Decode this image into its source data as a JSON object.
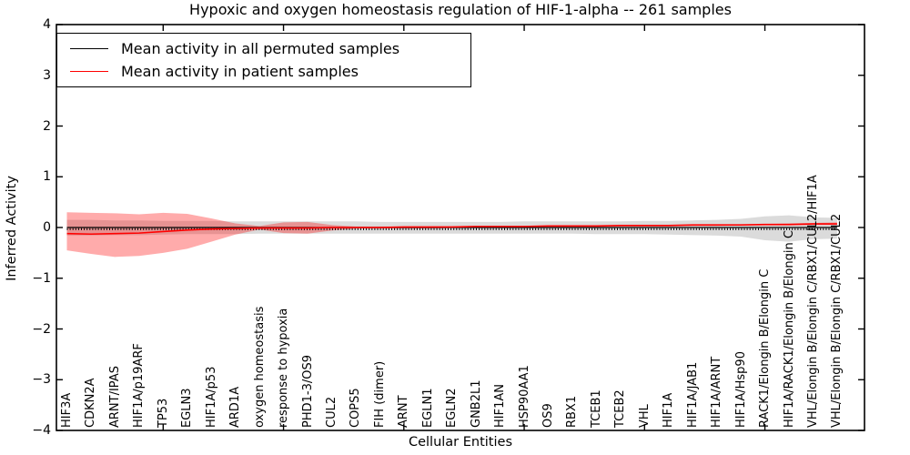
{
  "title": "Hypoxic and oxygen homeostasis regulation of HIF-1-alpha -- 261 samples",
  "axes": {
    "x_label": "Cellular Entities",
    "y_label": "Inferred Activity",
    "y_ticks": [
      "4",
      "3",
      "2",
      "1",
      "0",
      "−1",
      "−2",
      "−3",
      "−4"
    ]
  },
  "legend": {
    "items": [
      {
        "label": "Mean activity in all permuted samples",
        "color": "#000000"
      },
      {
        "label": "Mean activity in patient samples",
        "color": "#ff0000"
      }
    ],
    "position": "upper left"
  },
  "colors": {
    "patient_line": "#ff0000",
    "permuted_line": "#000000",
    "patient_band": "rgba(255,0,0,0.33)",
    "permuted_band": "rgba(0,0,0,0.14)",
    "axis": "#000000"
  },
  "chart_data": {
    "type": "line",
    "title": "Hypoxic and oxygen homeostasis regulation of HIF-1-alpha -- 261 samples",
    "xlabel": "Cellular Entities",
    "ylabel": "Inferred Activity",
    "ylim": [
      -4,
      4
    ],
    "grid": false,
    "legend_position": "upper left",
    "categories": [
      "HIF3A",
      "CDKN2A",
      "ARNT/IPAS",
      "HIF1A/p19ARF",
      "TP53",
      "EGLN3",
      "HIF1A/p53",
      "ARD1A",
      "oxygen homeostasis",
      "response to hypoxia",
      "PHD1-3/OS9",
      "CUL2",
      "COPS5",
      "FIH (dimer)",
      "ARNT",
      "EGLN1",
      "EGLN2",
      "GNB2L1",
      "HIF1AN",
      "HSP90AA1",
      "OS9",
      "RBX1",
      "TCEB1",
      "TCEB2",
      "VHL",
      "HIF1A",
      "HIF1A/JAB1",
      "HIF1A/ARNT",
      "HIF1A/Hsp90",
      "RACK1/Elongin B/Elongin C",
      "HIF1A/RACK1/Elongin B/Elongin C",
      "VHL/Elongin B/Elongin C/RBX1/CUL2/HIF1A",
      "VHL/Elongin B/Elongin C/RBX1/CUL2"
    ],
    "x_tick_indices": [
      4,
      9,
      14,
      19,
      24,
      29
    ],
    "series": [
      {
        "name": "Mean activity in all permuted samples",
        "color": "#000000",
        "values": [
          0,
          0,
          0,
          0,
          0,
          0,
          0,
          0,
          0,
          0,
          0,
          0,
          0,
          0,
          0,
          0,
          0,
          0,
          0,
          0,
          0,
          0,
          0,
          0,
          0,
          0,
          0,
          0,
          0,
          0,
          0,
          0,
          0
        ]
      },
      {
        "name": "Mean activity in patient samples",
        "color": "#ff0000",
        "values": [
          -0.12,
          -0.13,
          -0.12,
          -0.11,
          -0.08,
          -0.05,
          -0.03,
          -0.02,
          -0.01,
          -0.01,
          -0.01,
          0.0,
          0.0,
          0.0,
          0.01,
          0.01,
          0.01,
          0.02,
          0.02,
          0.02,
          0.03,
          0.03,
          0.03,
          0.04,
          0.04,
          0.04,
          0.05,
          0.05,
          0.05,
          0.06,
          0.06,
          0.07,
          0.07
        ]
      }
    ],
    "bands": [
      {
        "name": "permuted samples range",
        "color": "rgba(0,0,0,0.14)",
        "upper": [
          0.15,
          0.15,
          0.14,
          0.14,
          0.13,
          0.13,
          0.13,
          0.12,
          0.12,
          0.12,
          0.12,
          0.12,
          0.12,
          0.11,
          0.11,
          0.11,
          0.11,
          0.11,
          0.11,
          0.12,
          0.12,
          0.12,
          0.12,
          0.12,
          0.13,
          0.13,
          0.14,
          0.15,
          0.17,
          0.22,
          0.24,
          0.2,
          0.19
        ],
        "lower": [
          -0.16,
          -0.16,
          -0.15,
          -0.15,
          -0.14,
          -0.13,
          -0.13,
          -0.13,
          -0.12,
          -0.12,
          -0.12,
          -0.12,
          -0.12,
          -0.12,
          -0.12,
          -0.12,
          -0.12,
          -0.12,
          -0.12,
          -0.12,
          -0.12,
          -0.12,
          -0.13,
          -0.13,
          -0.13,
          -0.14,
          -0.15,
          -0.16,
          -0.18,
          -0.25,
          -0.28,
          -0.23,
          -0.22
        ]
      },
      {
        "name": "patient samples range",
        "color": "rgba(255,0,0,0.33)",
        "upper": [
          0.3,
          0.29,
          0.28,
          0.26,
          0.29,
          0.27,
          0.18,
          0.08,
          0.03,
          0.1,
          0.11,
          0.05,
          0.02,
          0.02,
          0.02,
          0.02,
          0.02,
          0.03,
          0.03,
          0.03,
          0.03,
          0.04,
          0.04,
          0.04,
          0.05,
          0.05,
          0.05,
          0.06,
          0.06,
          0.07,
          0.08,
          0.09,
          0.1
        ],
        "lower": [
          -0.45,
          -0.52,
          -0.58,
          -0.56,
          -0.5,
          -0.42,
          -0.28,
          -0.14,
          -0.04,
          -0.11,
          -0.12,
          -0.06,
          -0.02,
          -0.02,
          -0.02,
          -0.02,
          -0.01,
          -0.01,
          -0.01,
          0.0,
          0.0,
          0.01,
          0.01,
          0.02,
          0.02,
          0.02,
          0.03,
          0.03,
          0.04,
          0.04,
          0.04,
          0.05,
          0.05
        ]
      }
    ]
  }
}
